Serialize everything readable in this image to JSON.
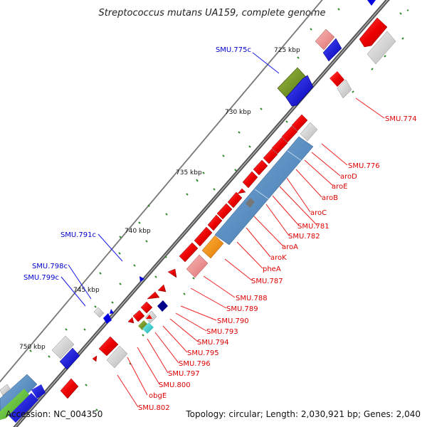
{
  "title": "Streptococcus mutans UA159, complete genome",
  "accession": "Accession: NC_004350",
  "topology": "Topology: circular; Length: 2,030,921 bp; Genes: 2,040",
  "colors": {
    "backbone": "#555555",
    "forward_cds": "#ee0000",
    "reverse_cds": "#0000dd",
    "grey_feature": "#cccccc",
    "pink_feature": "#f09090",
    "steel_feature": "#4a86c0",
    "olive_feature": "#6e8f20",
    "orange_feature": "#f08a00",
    "teal_feature": "#30c8c8",
    "label_red": "#dd0000",
    "label_blue": "#0000cc",
    "tick_green": "#2e8b2e"
  },
  "kbp_marks": [
    "725 kbp",
    "730 kbp",
    "735 kbp",
    "740 kbp",
    "745 kbp",
    "750 kbp"
  ],
  "right_labels": [
    "SMU.774",
    "SMU.776",
    "aroD",
    "aroE",
    "aroB",
    "aroC",
    "SMU.781",
    "SMU.782",
    "aroA",
    "aroK",
    "pheA",
    "SMU.787",
    "SMU.788",
    "SMU.789",
    "SMU.790",
    "SMU.793",
    "SMU.794",
    "SMU.795",
    "SMU.796",
    "SMU.797",
    "SMU.800",
    "obgE",
    "SMU.802"
  ],
  "left_labels": [
    "SMU.775c",
    "SMU.791c",
    "SMU.798c",
    "SMU.799c"
  ]
}
